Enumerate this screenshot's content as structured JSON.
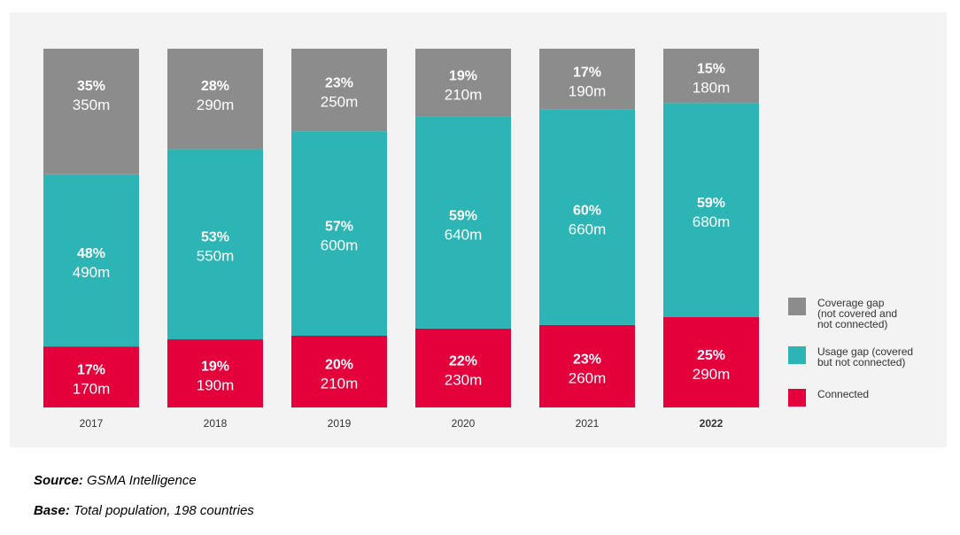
{
  "chart_data": {
    "type": "bar",
    "stacked": true,
    "normalized_percent": true,
    "categories": [
      "2017",
      "2018",
      "2019",
      "2020",
      "2021",
      "2022"
    ],
    "highlight_category": "2022",
    "series": [
      {
        "name": "Connected",
        "color": "#e4003a",
        "percent": [
          17,
          19,
          20,
          22,
          23,
          25
        ],
        "percent_labels": [
          "17%",
          "19%",
          "20%",
          "22%",
          "23%",
          "25%"
        ],
        "value_labels": [
          "170m",
          "190m",
          "210m",
          "230m",
          "260m",
          "290m"
        ]
      },
      {
        "name": "Usage gap (covered but not connected)",
        "color": "#2db5b5",
        "percent": [
          48,
          53,
          57,
          59,
          60,
          59
        ],
        "percent_labels": [
          "48%",
          "53%",
          "57%",
          "59%",
          "60%",
          "59%"
        ],
        "value_labels": [
          "490m",
          "550m",
          "600m",
          "640m",
          "660m",
          "680m"
        ]
      },
      {
        "name": "Coverage gap (not covered and not connected)",
        "color": "#8c8c8c",
        "percent": [
          35,
          28,
          23,
          19,
          17,
          15
        ],
        "percent_labels": [
          "35%",
          "28%",
          "23%",
          "19%",
          "17%",
          "15%"
        ],
        "value_labels": [
          "350m",
          "290m",
          "250m",
          "210m",
          "190m",
          "180m"
        ]
      }
    ],
    "legend": {
      "position": "right-bottom",
      "order": [
        "Coverage gap (not covered and not connected)",
        "Usage gap (covered but not connected)",
        "Connected"
      ],
      "lines": [
        [
          "Coverage gap",
          "(not covered and",
          "not connected)"
        ],
        [
          "Usage gap (covered",
          "but not connected)"
        ],
        [
          "Connected"
        ]
      ]
    },
    "grid": false,
    "label_color": "#ffffff"
  },
  "footer": {
    "source_label": "Source:",
    "source_text": " GSMA Intelligence",
    "base_label": "Base:",
    "base_text": " Total population, 198 countries"
  }
}
